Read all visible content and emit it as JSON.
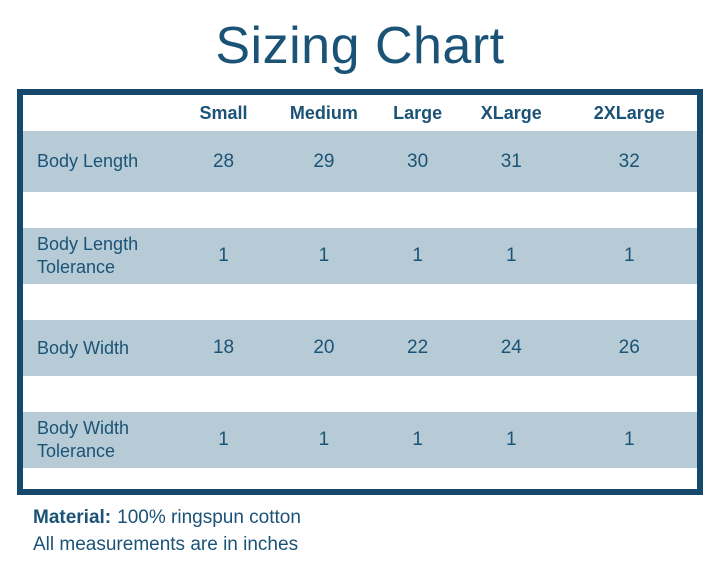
{
  "title": "Sizing Chart",
  "table": {
    "columns": [
      "",
      "Small",
      "Medium",
      "Large",
      "XLarge",
      "2XLarge"
    ],
    "rows": [
      {
        "label": "Body Length",
        "values": [
          "28",
          "29",
          "30",
          "31",
          "32"
        ]
      },
      {
        "label": "Body Length Tolerance",
        "values": [
          "1",
          "1",
          "1",
          "1",
          "1"
        ]
      },
      {
        "label": "Body Width",
        "values": [
          "18",
          "20",
          "22",
          "24",
          "26"
        ]
      },
      {
        "label": "Body Width Tolerance",
        "values": [
          "1",
          "1",
          "1",
          "1",
          "1"
        ]
      }
    ]
  },
  "footer": {
    "material_label": "Material:",
    "material_value": "100% ringspun cotton",
    "note": "All measurements are in inches"
  },
  "colors": {
    "text_navy": "#1b5377",
    "table_border": "#14496b",
    "row_background": "#b6cbd5",
    "page_background": "#ffffff"
  },
  "chart_data": {
    "type": "table",
    "title": "Sizing Chart",
    "columns": [
      "Small",
      "Medium",
      "Large",
      "XLarge",
      "2XLarge"
    ],
    "rows": [
      {
        "label": "Body Length",
        "values": [
          28,
          29,
          30,
          31,
          32
        ]
      },
      {
        "label": "Body Length Tolerance",
        "values": [
          1,
          1,
          1,
          1,
          1
        ]
      },
      {
        "label": "Body Width",
        "values": [
          18,
          20,
          22,
          24,
          26
        ]
      },
      {
        "label": "Body Width Tolerance",
        "values": [
          1,
          1,
          1,
          1,
          1
        ]
      }
    ],
    "units": "inches",
    "notes": [
      "Material: 100% ringspun cotton",
      "All measurements are in inches"
    ]
  }
}
